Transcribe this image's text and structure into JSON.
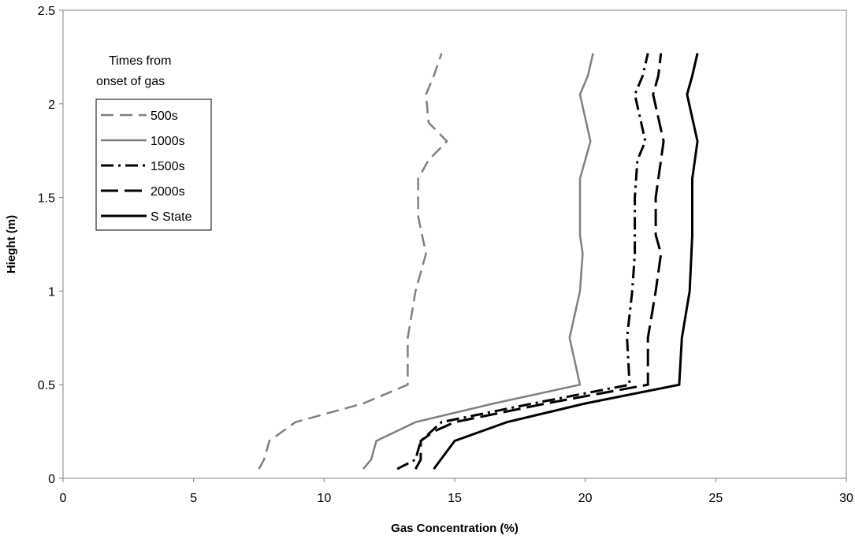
{
  "chart_data": {
    "type": "line",
    "xlabel": "Gas Concentration (%)",
    "ylabel": "Hieght (m)",
    "xlim": [
      0,
      30
    ],
    "ylim": [
      0,
      2.5
    ],
    "xticks": [
      "0",
      "5",
      "10",
      "15",
      "20",
      "25",
      "30"
    ],
    "yticks": [
      "0",
      "0.5",
      "1",
      "1.5",
      "2",
      "2.5"
    ],
    "grid": false,
    "legend_position": "upper-left",
    "legend_title": "Times from onset of gas",
    "legend_title_lines": [
      "Times from",
      "onset of gas"
    ],
    "series": [
      {
        "name": "500s",
        "color": "#808080",
        "style": "dashed",
        "points": [
          [
            7.5,
            0.05
          ],
          [
            7.7,
            0.1
          ],
          [
            7.9,
            0.2
          ],
          [
            8.9,
            0.3
          ],
          [
            11.5,
            0.4
          ],
          [
            13.2,
            0.5
          ],
          [
            13.2,
            0.75
          ],
          [
            13.5,
            1.0
          ],
          [
            13.9,
            1.2
          ],
          [
            13.6,
            1.4
          ],
          [
            13.6,
            1.6
          ],
          [
            14.0,
            1.7
          ],
          [
            14.7,
            1.8
          ],
          [
            14.0,
            1.9
          ],
          [
            13.9,
            2.05
          ],
          [
            14.2,
            2.15
          ],
          [
            14.5,
            2.27
          ]
        ]
      },
      {
        "name": "1000s",
        "color": "#808080",
        "style": "solid",
        "points": [
          [
            11.5,
            0.05
          ],
          [
            11.8,
            0.1
          ],
          [
            12.0,
            0.2
          ],
          [
            13.5,
            0.3
          ],
          [
            16.5,
            0.4
          ],
          [
            19.8,
            0.5
          ],
          [
            19.4,
            0.75
          ],
          [
            19.8,
            1.0
          ],
          [
            19.9,
            1.2
          ],
          [
            19.8,
            1.3
          ],
          [
            19.8,
            1.6
          ],
          [
            20.2,
            1.8
          ],
          [
            19.8,
            2.05
          ],
          [
            20.1,
            2.15
          ],
          [
            20.3,
            2.27
          ]
        ]
      },
      {
        "name": "1500s",
        "color": "#000000",
        "style": "dashdot",
        "points": [
          [
            12.8,
            0.05
          ],
          [
            13.5,
            0.1
          ],
          [
            13.7,
            0.2
          ],
          [
            14.5,
            0.3
          ],
          [
            18.0,
            0.4
          ],
          [
            21.7,
            0.5
          ],
          [
            21.6,
            0.75
          ],
          [
            21.8,
            1.0
          ],
          [
            21.9,
            1.2
          ],
          [
            21.9,
            1.5
          ],
          [
            22.0,
            1.7
          ],
          [
            22.3,
            1.8
          ],
          [
            21.9,
            2.05
          ],
          [
            22.2,
            2.15
          ],
          [
            22.4,
            2.27
          ]
        ]
      },
      {
        "name": "2000s",
        "color": "#000000",
        "style": "longdash",
        "points": [
          [
            13.5,
            0.05
          ],
          [
            13.7,
            0.1
          ],
          [
            13.7,
            0.2
          ],
          [
            14.2,
            0.25
          ],
          [
            15.0,
            0.3
          ],
          [
            18.5,
            0.4
          ],
          [
            22.4,
            0.5
          ],
          [
            22.4,
            0.75
          ],
          [
            22.7,
            1.0
          ],
          [
            22.9,
            1.2
          ],
          [
            22.7,
            1.3
          ],
          [
            22.7,
            1.5
          ],
          [
            22.9,
            1.7
          ],
          [
            23.0,
            1.8
          ],
          [
            22.6,
            2.05
          ],
          [
            22.8,
            2.15
          ],
          [
            22.9,
            2.27
          ]
        ]
      },
      {
        "name": "S State",
        "color": "#000000",
        "style": "solid",
        "points": [
          [
            14.2,
            0.05
          ],
          [
            15.0,
            0.2
          ],
          [
            17.0,
            0.3
          ],
          [
            20.0,
            0.4
          ],
          [
            23.6,
            0.5
          ],
          [
            23.7,
            0.75
          ],
          [
            24.0,
            1.0
          ],
          [
            24.1,
            1.3
          ],
          [
            24.1,
            1.6
          ],
          [
            24.3,
            1.8
          ],
          [
            23.9,
            2.05
          ],
          [
            24.1,
            2.15
          ],
          [
            24.3,
            2.27
          ]
        ]
      }
    ]
  }
}
